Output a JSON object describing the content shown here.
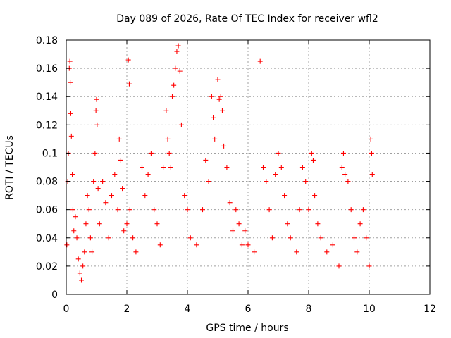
{
  "chart_data": {
    "type": "scatter",
    "title": "Day 089 of 2026, Rate Of TEC Index for receiver wfl2",
    "xlabel": "GPS time / hours",
    "ylabel": "ROTI / TECUs",
    "xlim": [
      0,
      12
    ],
    "ylim": [
      0,
      0.18
    ],
    "xticks": [
      0,
      2,
      4,
      6,
      8,
      10,
      12
    ],
    "yticks": [
      0,
      0.02,
      0.04,
      0.06,
      0.08,
      0.1,
      0.12,
      0.14,
      0.16,
      0.18
    ],
    "xtick_labels": [
      "0",
      "2",
      "4",
      "6",
      "8",
      "10",
      "12"
    ],
    "ytick_labels": [
      "0",
      "0.02",
      "0.04",
      "0.06",
      "0.08",
      "0.1",
      "0.12",
      "0.14",
      "0.16",
      "0.18"
    ],
    "grid": true,
    "marker": "plus",
    "color": "#ff0000",
    "series": [
      {
        "points": [
          [
            0.02,
            0.035
          ],
          [
            0.05,
            0.08
          ],
          [
            0.07,
            0.1
          ],
          [
            0.1,
            0.16
          ],
          [
            0.12,
            0.165
          ],
          [
            0.13,
            0.15
          ],
          [
            0.15,
            0.128
          ],
          [
            0.17,
            0.112
          ],
          [
            0.2,
            0.085
          ],
          [
            0.22,
            0.06
          ],
          [
            0.25,
            0.045
          ],
          [
            0.3,
            0.055
          ],
          [
            0.35,
            0.04
          ],
          [
            0.4,
            0.025
          ],
          [
            0.45,
            0.015
          ],
          [
            0.5,
            0.01
          ],
          [
            0.55,
            0.02
          ],
          [
            0.6,
            0.03
          ],
          [
            0.65,
            0.05
          ],
          [
            0.7,
            0.07
          ],
          [
            0.75,
            0.06
          ],
          [
            0.8,
            0.04
          ],
          [
            0.85,
            0.03
          ],
          [
            0.9,
            0.08
          ],
          [
            0.95,
            0.1
          ],
          [
            0.98,
            0.13
          ],
          [
            1.0,
            0.138
          ],
          [
            1.02,
            0.12
          ],
          [
            1.05,
            0.075
          ],
          [
            1.1,
            0.05
          ],
          [
            1.2,
            0.08
          ],
          [
            1.3,
            0.065
          ],
          [
            1.4,
            0.04
          ],
          [
            1.5,
            0.07
          ],
          [
            1.6,
            0.085
          ],
          [
            1.7,
            0.06
          ],
          [
            1.75,
            0.11
          ],
          [
            1.8,
            0.095
          ],
          [
            1.85,
            0.075
          ],
          [
            1.9,
            0.045
          ],
          [
            2.0,
            0.05
          ],
          [
            2.05,
            0.166
          ],
          [
            2.08,
            0.149
          ],
          [
            2.1,
            0.06
          ],
          [
            2.2,
            0.04
          ],
          [
            2.3,
            0.03
          ],
          [
            2.5,
            0.09
          ],
          [
            2.6,
            0.07
          ],
          [
            2.7,
            0.085
          ],
          [
            2.8,
            0.1
          ],
          [
            2.9,
            0.06
          ],
          [
            3.0,
            0.05
          ],
          [
            3.1,
            0.035
          ],
          [
            3.2,
            0.09
          ],
          [
            3.3,
            0.13
          ],
          [
            3.35,
            0.11
          ],
          [
            3.4,
            0.1
          ],
          [
            3.45,
            0.09
          ],
          [
            3.5,
            0.14
          ],
          [
            3.55,
            0.148
          ],
          [
            3.6,
            0.16
          ],
          [
            3.65,
            0.172
          ],
          [
            3.7,
            0.176
          ],
          [
            3.75,
            0.158
          ],
          [
            3.8,
            0.12
          ],
          [
            3.9,
            0.07
          ],
          [
            4.0,
            0.06
          ],
          [
            4.1,
            0.04
          ],
          [
            4.3,
            0.035
          ],
          [
            4.5,
            0.06
          ],
          [
            4.6,
            0.095
          ],
          [
            4.7,
            0.08
          ],
          [
            4.8,
            0.14
          ],
          [
            4.85,
            0.125
          ],
          [
            4.9,
            0.11
          ],
          [
            5.0,
            0.152
          ],
          [
            5.05,
            0.138
          ],
          [
            5.1,
            0.14
          ],
          [
            5.15,
            0.13
          ],
          [
            5.2,
            0.105
          ],
          [
            5.3,
            0.09
          ],
          [
            5.4,
            0.065
          ],
          [
            5.5,
            0.045
          ],
          [
            5.6,
            0.06
          ],
          [
            5.7,
            0.05
          ],
          [
            5.8,
            0.035
          ],
          [
            5.9,
            0.045
          ],
          [
            6.0,
            0.035
          ],
          [
            6.2,
            0.03
          ],
          [
            6.4,
            0.165
          ],
          [
            6.5,
            0.09
          ],
          [
            6.6,
            0.08
          ],
          [
            6.7,
            0.06
          ],
          [
            6.8,
            0.04
          ],
          [
            6.9,
            0.085
          ],
          [
            7.0,
            0.1
          ],
          [
            7.1,
            0.09
          ],
          [
            7.2,
            0.07
          ],
          [
            7.3,
            0.05
          ],
          [
            7.4,
            0.04
          ],
          [
            7.6,
            0.03
          ],
          [
            7.7,
            0.06
          ],
          [
            7.8,
            0.09
          ],
          [
            7.9,
            0.08
          ],
          [
            8.0,
            0.06
          ],
          [
            8.1,
            0.1
          ],
          [
            8.15,
            0.095
          ],
          [
            8.2,
            0.07
          ],
          [
            8.3,
            0.05
          ],
          [
            8.4,
            0.04
          ],
          [
            8.6,
            0.03
          ],
          [
            8.8,
            0.035
          ],
          [
            9.0,
            0.02
          ],
          [
            9.1,
            0.09
          ],
          [
            9.15,
            0.1
          ],
          [
            9.2,
            0.085
          ],
          [
            9.3,
            0.08
          ],
          [
            9.4,
            0.06
          ],
          [
            9.5,
            0.04
          ],
          [
            9.6,
            0.03
          ],
          [
            9.7,
            0.05
          ],
          [
            9.8,
            0.06
          ],
          [
            9.9,
            0.04
          ],
          [
            10.0,
            0.02
          ],
          [
            10.05,
            0.11
          ],
          [
            10.08,
            0.1
          ],
          [
            10.1,
            0.085
          ]
        ]
      }
    ]
  }
}
